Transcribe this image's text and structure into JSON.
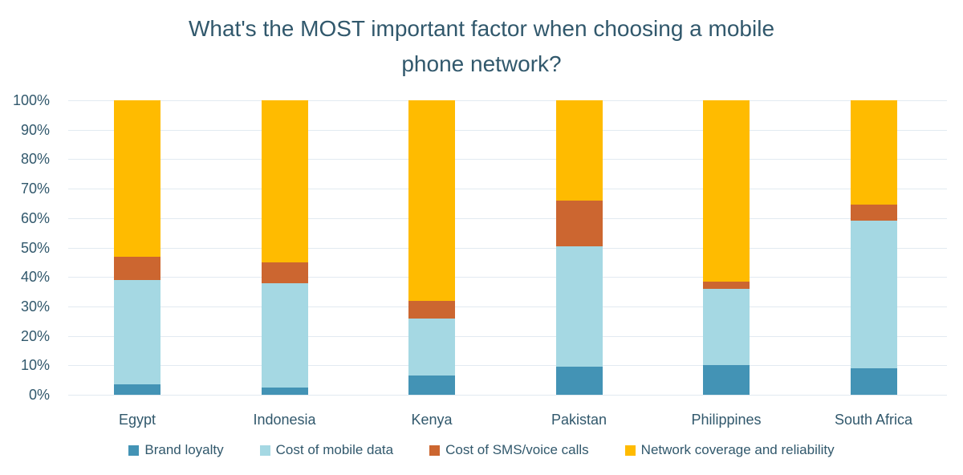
{
  "title": "What's the MOST important factor when choosing a mobile phone network?",
  "colors": {
    "text": "#31586C",
    "gridline": "#E2EAF1",
    "background": "#FFFFFF"
  },
  "chart_data": {
    "type": "bar",
    "stacked": true,
    "units": "percent",
    "title": "What's the MOST important factor when choosing a mobile phone network?",
    "categories": [
      "Egypt",
      "Indonesia",
      "Kenya",
      "Pakistan",
      "Philippines",
      "South Africa"
    ],
    "series": [
      {
        "name": "Brand loyalty",
        "color": "#4393B5",
        "values": [
          3.5,
          2.5,
          6.5,
          9.5,
          10,
          9
        ]
      },
      {
        "name": "Cost of mobile data",
        "color": "#A5D8E3",
        "values": [
          35.5,
          35.5,
          19.5,
          41,
          26,
          50
        ]
      },
      {
        "name": "Cost of SMS/voice calls",
        "color": "#CC6630",
        "values": [
          8,
          7,
          6,
          15.5,
          2.5,
          5.5
        ]
      },
      {
        "name": "Network coverage and reliability",
        "color": "#FFBB00",
        "values": [
          53,
          55,
          68,
          34,
          61.5,
          35.5
        ]
      }
    ],
    "xlabel": "",
    "ylabel": "",
    "ylim": [
      0,
      100
    ],
    "y_ticks": [
      "0%",
      "10%",
      "20%",
      "30%",
      "40%",
      "50%",
      "60%",
      "70%",
      "80%",
      "90%",
      "100%"
    ],
    "grid": true,
    "legend_position": "bottom"
  }
}
